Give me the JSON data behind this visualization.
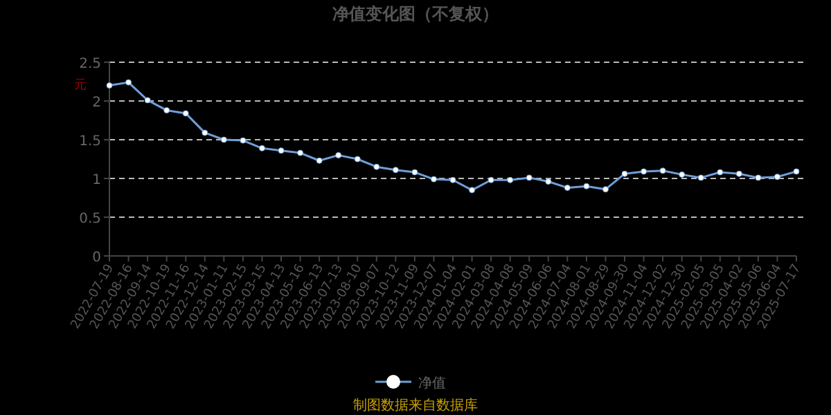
{
  "chart_data": {
    "type": "line",
    "title": "净值变化图（不复权）",
    "ylabel": "元",
    "categories": [
      "2022-07-19",
      "2022-08-16",
      "2022-09-14",
      "2022-10-19",
      "2022-11-16",
      "2022-12-14",
      "2023-01-11",
      "2023-02-15",
      "2023-03-15",
      "2023-04-13",
      "2023-05-16",
      "2023-06-13",
      "2023-07-13",
      "2023-08-10",
      "2023-09-07",
      "2023-10-12",
      "2023-11-09",
      "2023-12-07",
      "2024-01-04",
      "2024-02-01",
      "2024-03-08",
      "2024-04-08",
      "2024-05-09",
      "2024-06-06",
      "2024-07-04",
      "2024-08-01",
      "2024-08-29",
      "2024-09-30",
      "2024-11-04",
      "2024-12-02",
      "2024-12-30",
      "2025-02-05",
      "2025-03-05",
      "2025-04-02",
      "2025-05-06",
      "2025-06-04",
      "2025-07-17"
    ],
    "series": [
      {
        "name": "净值",
        "color": "#6f9fd8",
        "values": [
          2.2,
          2.24,
          2.01,
          1.88,
          1.84,
          1.59,
          1.5,
          1.49,
          1.39,
          1.36,
          1.33,
          1.23,
          1.3,
          1.25,
          1.15,
          1.11,
          1.08,
          0.99,
          0.98,
          0.85,
          0.98,
          0.98,
          1.01,
          0.96,
          0.88,
          0.9,
          0.86,
          1.06,
          1.09,
          1.1,
          1.05,
          1.01,
          1.08,
          1.06,
          1.01,
          1.02,
          1.09
        ]
      }
    ],
    "ylim": [
      0,
      2.5
    ],
    "yticks": [
      0,
      0.5,
      1,
      1.5,
      2,
      2.5
    ],
    "grid": "y",
    "legend": "bottom",
    "marker": "circle",
    "line_style": "solid",
    "annotations": [
      "制图数据来自数据库"
    ]
  }
}
